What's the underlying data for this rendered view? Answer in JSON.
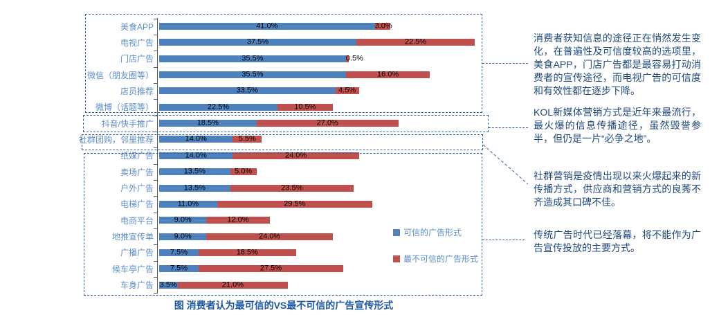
{
  "figure_title": "图  消费者认为最可信的VS最不可信的广告宣传形式",
  "legend": {
    "items": [
      {
        "label": "可信的广告形式",
        "color": "#4F81BD"
      },
      {
        "label": "最不可信的广告形式",
        "color": "#C0504D"
      }
    ]
  },
  "annotations": [
    {
      "text": "消费者获知信息的途径正在悄然发生变化，在普遍性及可信度较高的选项里，美食APP，门店广告都是最容易打动消费者的宣传途径，而电视广告的可信度和有效性都在逐步下降。"
    },
    {
      "text": "KOL新媒体营销方式是近年来最流行，最火爆的信息传播途径，虽然毁誉参半，但仍是一片“必争之地”。"
    },
    {
      "text": "社群营销是疫情出现以来火爆起来的新传播方式，供应商和营销方式的良莠不齐造成其口碑不佳。"
    },
    {
      "text": "传统广告时代已经落幕，将不能作为广告宣传投放的主要方式。"
    }
  ],
  "chart_data": {
    "type": "bar",
    "orientation": "horizontal",
    "stacked": true,
    "title": "图  消费者认为最可信的VS最不可信的广告宣传形式",
    "categories": [
      "美食APP",
      "电视广告",
      "门店广告",
      "微信（朋友圈等）",
      "店员推荐",
      "微博（话题等）",
      "抖音/快手推广",
      "社群团购，邻里推荐",
      "纸媒广告",
      "卖场广告",
      "户外广告",
      "电梯广告",
      "电商平台",
      "地推宣传单",
      "广播广告",
      "候车亭广告",
      "车身广告"
    ],
    "series": [
      {
        "name": "可信的广告形式",
        "color": "#4F81BD",
        "values": [
          41.0,
          37.5,
          35.5,
          35.5,
          33.5,
          22.5,
          18.5,
          14.0,
          14.0,
          13.5,
          13.5,
          11.0,
          9.0,
          9.0,
          7.5,
          7.5,
          3.5
        ]
      },
      {
        "name": "最不可信的广告形式",
        "color": "#C0504D",
        "values": [
          3.0,
          22.5,
          0.5,
          16.0,
          4.5,
          10.5,
          27.0,
          5.5,
          24.0,
          5.0,
          23.5,
          29.5,
          12.0,
          24.0,
          18.5,
          27.5,
          21.0
        ]
      }
    ],
    "value_label_format": "#.0%",
    "xlim": [
      0,
      62
    ],
    "grid": false,
    "legend_position": "right-middle",
    "groups": [
      {
        "rows": [
          0,
          5
        ],
        "annotation_index": 0
      },
      {
        "rows": [
          6,
          6
        ],
        "annotation_index": 1
      },
      {
        "rows": [
          7,
          7
        ],
        "annotation_index": 2
      },
      {
        "rows": [
          8,
          16
        ],
        "annotation_index": 3
      }
    ]
  }
}
